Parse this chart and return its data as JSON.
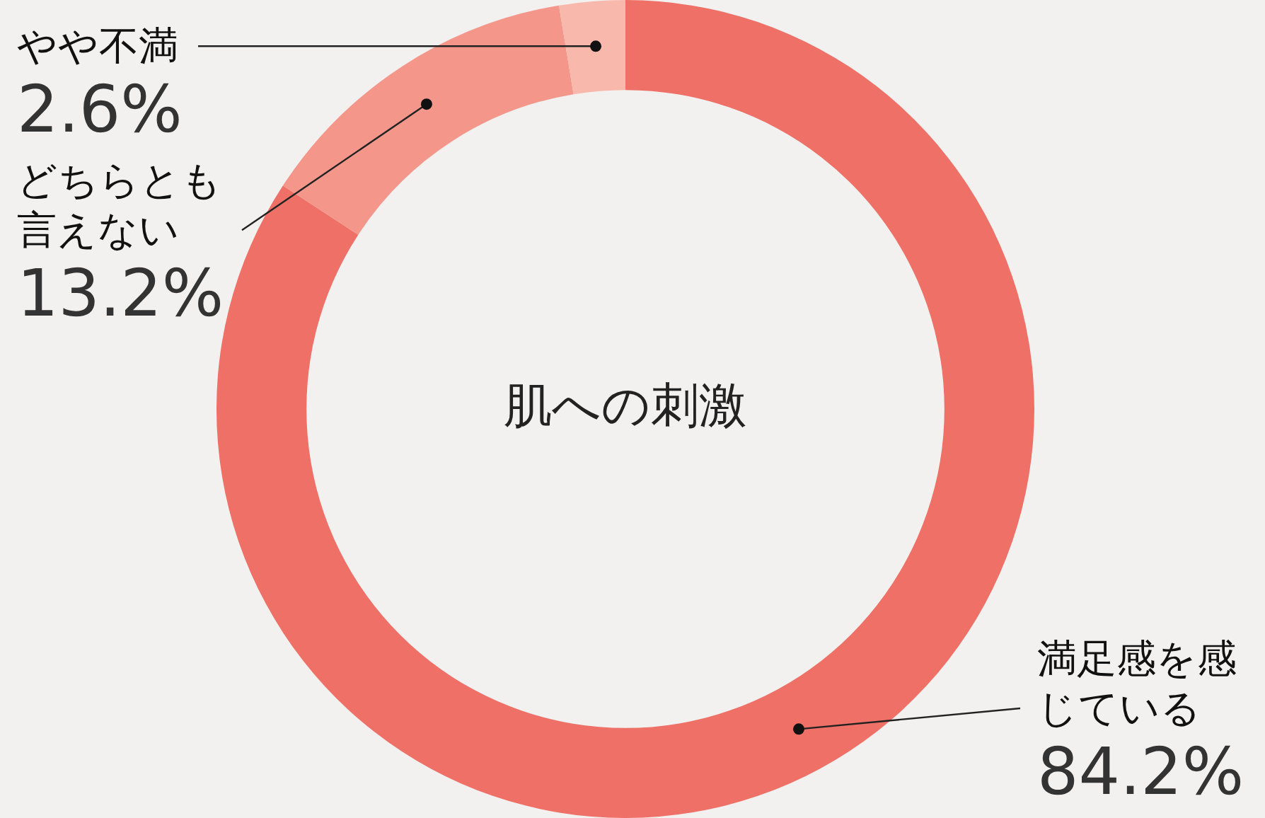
{
  "chart_data": {
    "type": "donut",
    "title": "肌への刺激",
    "categories": [
      "満足感を感じている",
      "どちらとも言えない",
      "やや不満"
    ],
    "values": [
      84.2,
      13.2,
      2.6
    ],
    "value_labels": [
      "84.2%",
      "13.2%",
      "2.6%"
    ],
    "colors": [
      "#ee7066",
      "#f4968a",
      "#f8b8ac"
    ],
    "legend": false
  }
}
